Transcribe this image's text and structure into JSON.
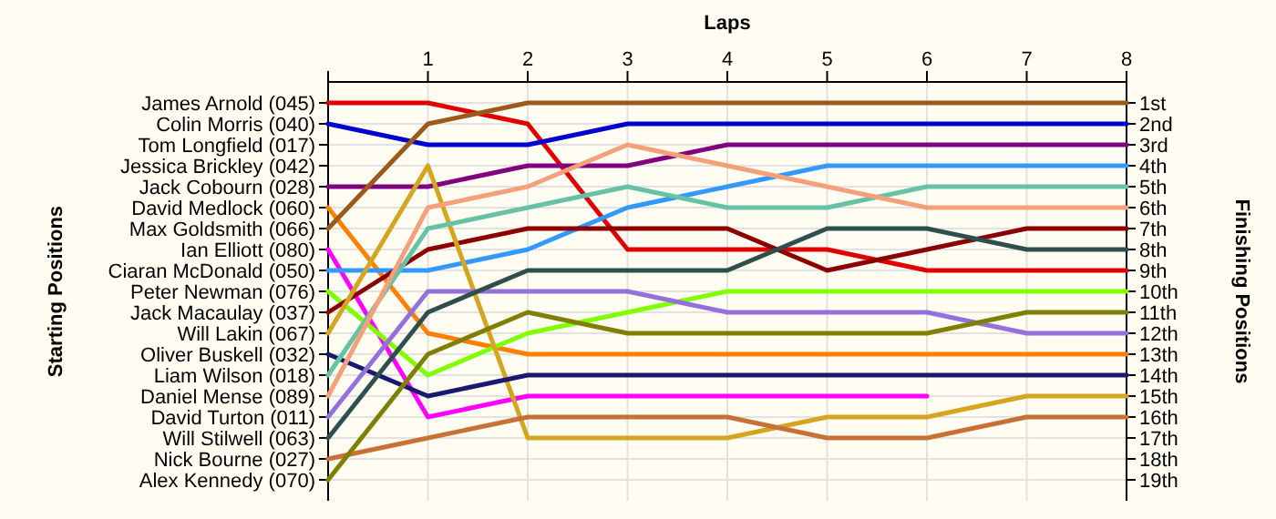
{
  "chart_data": {
    "type": "line",
    "xlabel": "Laps",
    "ylabel": "Finishing Positions",
    "x": [
      0,
      1,
      2,
      3,
      4,
      5,
      6,
      7,
      8
    ],
    "xlim": [
      0,
      8
    ],
    "xticks": [
      1,
      2,
      3,
      4,
      5,
      6,
      7,
      8
    ],
    "ylim": [
      20,
      0
    ],
    "yticks": [
      {
        "value": 1,
        "label": "1st"
      },
      {
        "value": 2,
        "label": "2nd"
      },
      {
        "value": 3,
        "label": "3rd"
      },
      {
        "value": 4,
        "label": "4th"
      },
      {
        "value": 5,
        "label": "5th"
      },
      {
        "value": 6,
        "label": "6th"
      },
      {
        "value": 7,
        "label": "7th"
      },
      {
        "value": 8,
        "label": "8th"
      },
      {
        "value": 9,
        "label": "9th"
      },
      {
        "value": 10,
        "label": "10th"
      },
      {
        "value": 11,
        "label": "11th"
      },
      {
        "value": 12,
        "label": "12th"
      },
      {
        "value": 13,
        "label": "13th"
      },
      {
        "value": 14,
        "label": "14th"
      },
      {
        "value": 15,
        "label": "15th"
      },
      {
        "value": 16,
        "label": "16th"
      },
      {
        "value": 17,
        "label": "17th"
      },
      {
        "value": 18,
        "label": "18th"
      },
      {
        "value": 19,
        "label": "19th"
      }
    ],
    "annotations": [
      "Starting Positions",
      "James Arnold (045)",
      "Colin Morris (040)",
      "Tom Longfield (017)",
      "Jessica Brickley (042)",
      "Jack Cobourn (028)",
      "David Medlock (060)",
      "Max Goldsmith (066)",
      "Ian Elliott (080)",
      "Ciaran McDonald (050)",
      "Peter Newman (076)",
      "Jack Macaulay (037)",
      "Will Lakin (067)",
      "Oliver Buskell (032)",
      "Liam Wilson (018)",
      "Daniel Mense (089)",
      "David Turton (011)",
      "Will Stilwell (063)",
      "Nick Bourne (027)",
      "Alex Kennedy (070)"
    ],
    "grid": true,
    "marker": "none",
    "line_style": "solid",
    "series": [
      {
        "color": "#e00000",
        "values": [
          1,
          1,
          2,
          8,
          8,
          8,
          9,
          9,
          9
        ]
      },
      {
        "color": "#0000d0",
        "values": [
          2,
          3,
          3,
          2,
          2,
          2,
          2,
          2,
          2
        ]
      },
      {
        "color": "#800080",
        "values": [
          5,
          5,
          4,
          4,
          3,
          3,
          3,
          3,
          3
        ]
      },
      {
        "color": "#ff8000",
        "values": [
          6,
          12,
          13,
          13,
          13,
          13,
          13,
          13,
          13
        ]
      },
      {
        "color": "#9c5a1a",
        "values": [
          7,
          2,
          1,
          1,
          1,
          1,
          1,
          1,
          1
        ]
      },
      {
        "color": "#ff00ff",
        "values": [
          8,
          16,
          15,
          15,
          15,
          15,
          15,
          null,
          null
        ]
      },
      {
        "color": "#3399ff",
        "values": [
          9,
          9,
          8,
          6,
          5,
          4,
          4,
          4,
          4
        ]
      },
      {
        "color": "#80ff00",
        "values": [
          10,
          14,
          12,
          11,
          10,
          10,
          10,
          10,
          10
        ]
      },
      {
        "color": "#8b0000",
        "values": [
          11,
          8,
          7,
          7,
          7,
          9,
          8,
          7,
          7
        ]
      },
      {
        "color": "#d4a520",
        "values": [
          12,
          4,
          17,
          17,
          17,
          16,
          16,
          15,
          15
        ]
      },
      {
        "color": "#191970",
        "values": [
          13,
          15,
          14,
          14,
          14,
          14,
          14,
          14,
          14
        ]
      },
      {
        "color": "#66c2a5",
        "values": [
          14,
          7,
          6,
          5,
          6,
          6,
          5,
          5,
          5
        ]
      },
      {
        "color": "#f4a07a",
        "values": [
          15,
          6,
          5,
          3,
          4,
          5,
          6,
          6,
          6
        ]
      },
      {
        "color": "#9370db",
        "values": [
          16,
          10,
          10,
          10,
          11,
          11,
          11,
          12,
          12
        ]
      },
      {
        "color": "#2f4f4f",
        "values": [
          17,
          11,
          9,
          9,
          9,
          7,
          7,
          8,
          8
        ]
      },
      {
        "color": "#c87137",
        "values": [
          18,
          17,
          16,
          16,
          16,
          17,
          17,
          16,
          16
        ]
      },
      {
        "color": "#808000",
        "values": [
          19,
          13,
          11,
          12,
          12,
          12,
          12,
          11,
          11
        ]
      }
    ]
  }
}
